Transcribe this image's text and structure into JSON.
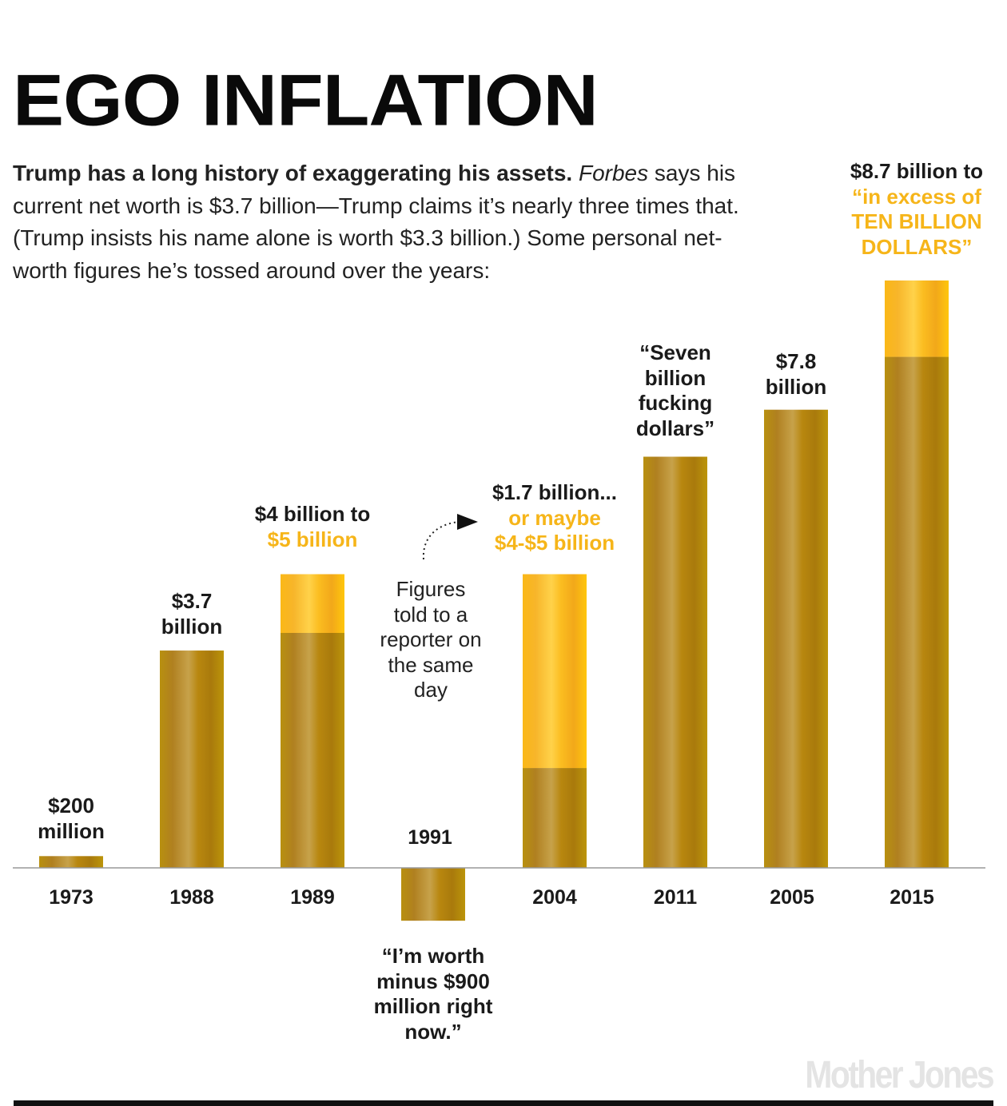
{
  "chart_data": {
    "type": "bar",
    "title": "EGO INFLATION",
    "subtitle": {
      "bold": "Trump has a long history of exaggerating his assets.",
      "italic": "Forbes",
      "rest": " says his current net worth is $3.7 billion—Trump claims it’s nearly three times that. (Trump insists his name alone is worth $3.3 billion.) Some personal net-worth figures he’s tossed around over the years:"
    },
    "unit": "billion dollars",
    "categories": [
      "1973",
      "1988",
      "1989",
      "1991",
      "2004",
      "2011",
      "2005",
      "2015"
    ],
    "values": [
      0.2,
      3.7,
      4,
      -0.9,
      1.7,
      7,
      7.8,
      8.7
    ],
    "range_high": [
      null,
      null,
      5,
      null,
      5,
      null,
      null,
      10
    ],
    "colors": {
      "base": "#b8900f",
      "range": "#fdc317",
      "highlight_text": "#f6b519"
    },
    "labels": [
      {
        "lines": [
          {
            "text": "$200",
            "hl": false
          },
          {
            "text": "million",
            "hl": false
          }
        ]
      },
      {
        "lines": [
          {
            "text": "$3.7",
            "hl": false
          },
          {
            "text": "billion",
            "hl": false
          }
        ]
      },
      {
        "lines": [
          {
            "text": "$4 billion to",
            "hl": false
          },
          {
            "text": "$5 billion",
            "hl": true
          }
        ]
      },
      {
        "lines": [
          {
            "text": "“I’m worth",
            "hl": false
          },
          {
            "text": "minus $900",
            "hl": false
          },
          {
            "text": "million right",
            "hl": false
          },
          {
            "text": "now.”",
            "hl": false
          }
        ]
      },
      {
        "lines": [
          {
            "text": "$1.7 billion...",
            "hl": false
          },
          {
            "text": "or maybe",
            "hl": true
          },
          {
            "text": "$4-$5 billion",
            "hl": true
          }
        ]
      },
      {
        "lines": [
          {
            "text": "“Seven",
            "hl": false
          },
          {
            "text": "billion",
            "hl": false
          },
          {
            "text": "fucking",
            "hl": false
          },
          {
            "text": "dollars”",
            "hl": false
          }
        ]
      },
      {
        "lines": [
          {
            "text": "$7.8",
            "hl": false
          },
          {
            "text": "billion",
            "hl": false
          }
        ]
      },
      {
        "lines": [
          {
            "text": "$8.7 billion to",
            "hl": false
          },
          {
            "text": "“in excess of",
            "hl": true
          },
          {
            "text": "TEN BILLION",
            "hl": true
          },
          {
            "text": "DOLLARS”",
            "hl": true
          }
        ]
      }
    ],
    "annotation": [
      "Figures",
      "told to a",
      "reporter on",
      "the same",
      "day"
    ],
    "grid": false,
    "legend": "none"
  },
  "brand": "Mother Jones"
}
